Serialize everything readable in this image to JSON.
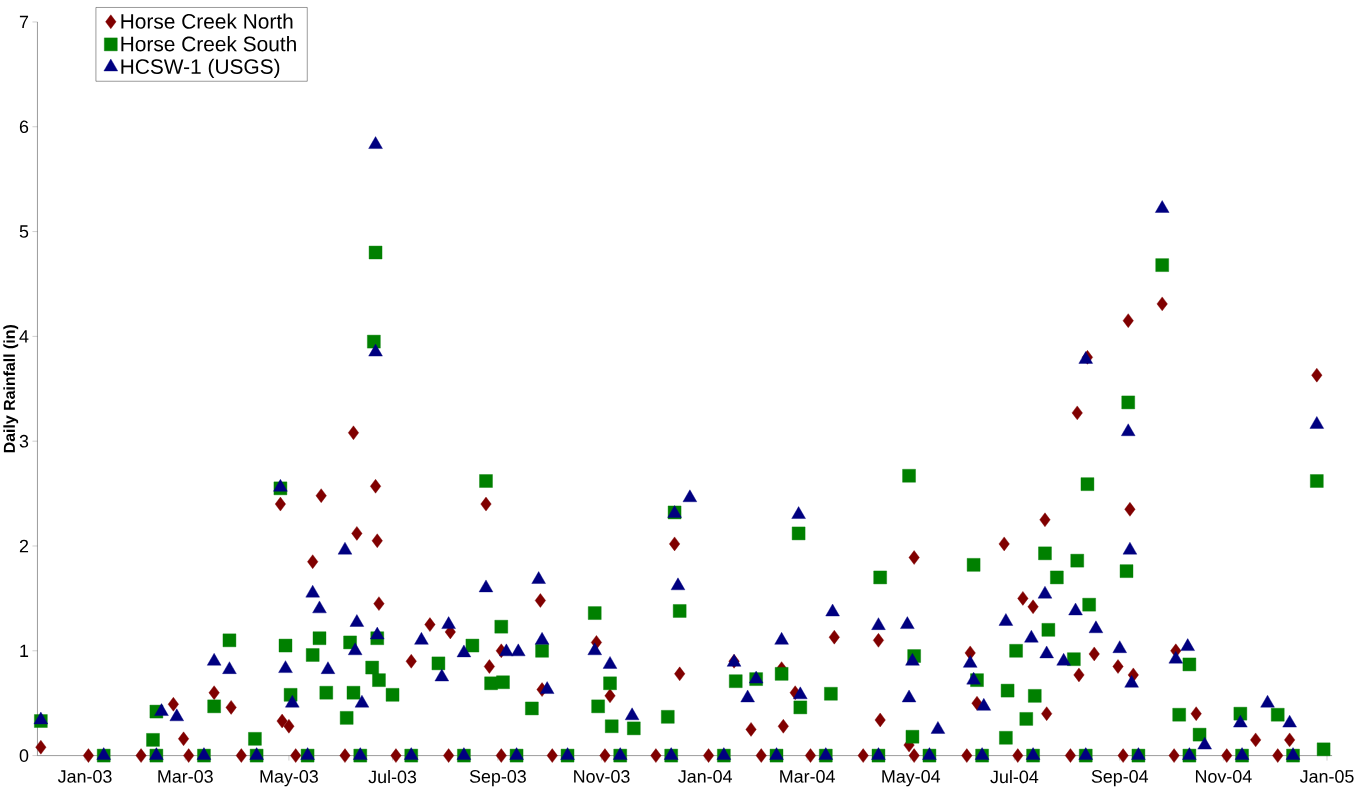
{
  "chart_data": {
    "type": "scatter",
    "ylabel": "Daily Rainfall (in)",
    "xlim": [
      "2002-12-04",
      "2005-01-04"
    ],
    "ylim": [
      0,
      7
    ],
    "yticks": [
      0,
      1,
      2,
      3,
      4,
      5,
      6,
      7
    ],
    "xticks": [
      {
        "value": "2003-01-01",
        "label": "Jan-03"
      },
      {
        "value": "2003-03-01",
        "label": "Mar-03"
      },
      {
        "value": "2003-05-01",
        "label": "May-03"
      },
      {
        "value": "2003-07-01",
        "label": "Jul-03"
      },
      {
        "value": "2003-09-01",
        "label": "Sep-03"
      },
      {
        "value": "2003-11-01",
        "label": "Nov-03"
      },
      {
        "value": "2004-01-01",
        "label": "Jan-04"
      },
      {
        "value": "2004-03-01",
        "label": "Mar-04"
      },
      {
        "value": "2004-05-01",
        "label": "May-04"
      },
      {
        "value": "2004-07-01",
        "label": "Jul-04"
      },
      {
        "value": "2004-09-01",
        "label": "Sep-04"
      },
      {
        "value": "2004-11-01",
        "label": "Nov-04"
      },
      {
        "value": "2005-01-01",
        "label": "Jan-05"
      }
    ],
    "legend": "top left",
    "series": [
      {
        "name": "Horse Creek North",
        "color": "#800000",
        "marker": "diamond",
        "x": [
          "2002-12-06",
          "2003-02-22",
          "2003-02-28",
          "2003-03-18",
          "2003-03-28",
          "2003-04-26",
          "2003-04-27",
          "2003-05-01",
          "2003-05-15",
          "2003-05-20",
          "2003-06-08",
          "2003-06-10",
          "2003-06-21",
          "2003-06-22",
          "2003-06-23",
          "2003-07-12",
          "2003-07-23",
          "2003-08-04",
          "2003-08-25",
          "2003-08-27",
          "2003-09-03",
          "2003-09-26",
          "2003-09-27",
          "2003-10-29",
          "2003-11-06",
          "2003-12-14",
          "2003-12-17",
          "2004-01-18",
          "2004-01-28",
          "2004-02-15",
          "2004-02-16",
          "2004-02-23",
          "2004-03-17",
          "2004-04-12",
          "2004-04-13",
          "2004-05-03",
          "2004-04-30",
          "2004-06-05",
          "2004-06-09",
          "2004-06-25",
          "2004-07-06",
          "2004-07-12",
          "2004-07-19",
          "2004-07-20",
          "2004-08-07",
          "2004-08-13",
          "2004-08-17",
          "2004-08-08",
          "2004-09-06",
          "2004-09-07",
          "2004-08-31",
          "2004-09-09",
          "2004-09-26",
          "2004-10-04",
          "2004-10-16",
          "2004-11-20",
          "2004-12-10",
          "2004-12-26",
          "2003-01-03",
          "2003-02-03",
          "2003-03-03",
          "2003-04-03",
          "2003-05-05",
          "2003-06-03",
          "2003-07-03",
          "2003-08-03",
          "2003-09-03",
          "2003-10-03",
          "2003-11-03",
          "2003-12-03",
          "2004-01-03",
          "2004-02-03",
          "2004-03-03",
          "2004-04-03",
          "2004-05-03",
          "2004-06-03",
          "2004-07-03",
          "2004-08-03",
          "2004-09-03",
          "2004-10-03",
          "2004-11-03",
          "2004-12-03"
        ],
        "values": [
          0.08,
          0.49,
          0.16,
          0.6,
          0.46,
          2.4,
          0.33,
          0.28,
          1.85,
          2.48,
          3.08,
          2.12,
          2.57,
          2.05,
          1.45,
          0.9,
          1.25,
          1.18,
          2.4,
          0.85,
          1.0,
          1.48,
          0.63,
          1.08,
          0.57,
          2.02,
          0.78,
          0.9,
          0.25,
          0.83,
          0.28,
          0.6,
          1.13,
          1.1,
          0.34,
          1.89,
          0.1,
          0.98,
          0.5,
          2.02,
          1.5,
          1.42,
          2.25,
          0.4,
          3.27,
          3.8,
          0.97,
          0.77,
          4.15,
          2.35,
          0.85,
          0.77,
          4.31,
          1.0,
          0.4,
          0.15,
          0.15,
          3.63,
          0,
          0,
          0,
          0,
          0,
          0,
          0,
          0,
          0,
          0,
          0,
          0,
          0,
          0,
          0,
          0,
          0,
          0,
          0,
          0,
          0,
          0,
          0,
          0
        ]
      },
      {
        "name": "Horse Creek South",
        "color": "#008000",
        "marker": "square",
        "x": [
          "2002-12-06",
          "2003-02-10",
          "2003-02-12",
          "2003-03-18",
          "2003-03-27",
          "2003-04-11",
          "2003-04-26",
          "2003-04-29",
          "2003-05-02",
          "2003-05-15",
          "2003-05-19",
          "2003-05-23",
          "2003-06-04",
          "2003-06-06",
          "2003-06-08",
          "2003-06-21",
          "2003-06-20",
          "2003-06-22",
          "2003-06-19",
          "2003-06-23",
          "2003-07-01",
          "2003-07-28",
          "2003-08-17",
          "2003-08-25",
          "2003-08-28",
          "2003-09-03",
          "2003-09-04",
          "2003-09-21",
          "2003-09-27",
          "2003-10-28",
          "2003-10-30",
          "2003-11-06",
          "2003-11-07",
          "2003-11-20",
          "2003-12-10",
          "2003-12-14",
          "2003-12-17",
          "2004-01-19",
          "2004-01-31",
          "2004-02-15",
          "2004-02-25",
          "2004-02-26",
          "2004-03-15",
          "2004-04-13",
          "2004-04-30",
          "2004-05-03",
          "2004-05-02",
          "2004-06-07",
          "2004-06-09",
          "2004-06-26",
          "2004-06-27",
          "2004-07-02",
          "2004-07-08",
          "2004-07-13",
          "2004-07-19",
          "2004-07-21",
          "2004-07-26",
          "2004-08-05",
          "2004-08-07",
          "2004-08-13",
          "2004-08-14",
          "2004-09-05",
          "2004-09-06",
          "2004-09-26",
          "2004-10-06",
          "2004-10-12",
          "2004-10-18",
          "2004-11-11",
          "2004-12-03",
          "2004-12-26",
          "2004-12-30",
          "2003-01-12",
          "2003-02-12",
          "2003-03-12",
          "2003-04-12",
          "2003-05-12",
          "2003-06-12",
          "2003-07-12",
          "2003-08-12",
          "2003-09-12",
          "2003-10-12",
          "2003-11-12",
          "2003-12-12",
          "2004-01-12",
          "2004-02-12",
          "2004-03-12",
          "2004-04-12",
          "2004-05-12",
          "2004-06-12",
          "2004-07-12",
          "2004-08-12",
          "2004-09-12",
          "2004-10-12",
          "2004-11-12",
          "2004-12-12"
        ],
        "values": [
          0.33,
          0.15,
          0.42,
          0.47,
          1.1,
          0.16,
          2.55,
          1.05,
          0.58,
          0.96,
          1.12,
          0.6,
          0.36,
          1.08,
          0.6,
          4.8,
          3.95,
          1.12,
          0.84,
          0.72,
          0.58,
          0.88,
          1.05,
          2.62,
          0.69,
          1.23,
          0.7,
          0.45,
          1.0,
          1.36,
          0.47,
          0.69,
          0.28,
          0.26,
          0.37,
          2.32,
          1.38,
          0.71,
          0.73,
          0.78,
          2.12,
          0.46,
          0.59,
          1.7,
          2.67,
          0.95,
          0.18,
          1.82,
          0.72,
          0.17,
          0.62,
          1.0,
          0.35,
          0.57,
          1.93,
          1.2,
          1.7,
          0.92,
          1.86,
          2.59,
          1.44,
          1.76,
          3.37,
          4.68,
          0.39,
          0.87,
          0.2,
          0.4,
          0.39,
          2.62,
          0.06,
          0,
          0,
          0,
          0,
          0,
          0,
          0,
          0,
          0,
          0,
          0,
          0,
          0,
          0,
          0,
          0,
          0,
          0,
          0,
          0,
          0,
          0,
          0,
          0
        ]
      },
      {
        "name": "HCSW-1 (USGS)",
        "color": "#000080",
        "marker": "triangle",
        "x": [
          "2002-12-06",
          "2003-02-15",
          "2003-02-24",
          "2003-03-18",
          "2003-03-27",
          "2003-04-26",
          "2003-04-29",
          "2003-05-03",
          "2003-05-15",
          "2003-05-19",
          "2003-05-24",
          "2003-06-03",
          "2003-06-09",
          "2003-06-10",
          "2003-06-13",
          "2003-06-21",
          "2003-06-21",
          "2003-06-22",
          "2003-07-18",
          "2003-07-30",
          "2003-08-03",
          "2003-08-12",
          "2003-08-25",
          "2003-09-06",
          "2003-09-13",
          "2003-09-25",
          "2003-09-27",
          "2003-09-30",
          "2003-10-28",
          "2003-11-06",
          "2003-11-19",
          "2003-12-14",
          "2003-12-16",
          "2003-12-23",
          "2004-01-18",
          "2004-01-26",
          "2004-01-31",
          "2004-02-15",
          "2004-02-25",
          "2004-02-26",
          "2004-03-16",
          "2004-04-12",
          "2004-04-29",
          "2004-04-30",
          "2004-05-02",
          "2004-05-17",
          "2004-06-05",
          "2004-06-07",
          "2004-06-13",
          "2004-06-26",
          "2004-07-11",
          "2004-07-19",
          "2004-07-20",
          "2004-07-30",
          "2004-08-06",
          "2004-08-12",
          "2004-08-18",
          "2004-09-01",
          "2004-09-06",
          "2004-09-07",
          "2004-09-08",
          "2004-09-26",
          "2004-10-04",
          "2004-10-11",
          "2004-10-21",
          "2004-11-11",
          "2004-11-27",
          "2004-12-10",
          "2004-12-26",
          "2003-01-12",
          "2003-02-12",
          "2003-03-12",
          "2003-04-12",
          "2003-05-12",
          "2003-06-12",
          "2003-07-12",
          "2003-08-12",
          "2003-09-12",
          "2003-10-12",
          "2003-11-12",
          "2003-12-12",
          "2004-01-12",
          "2004-02-12",
          "2004-03-12",
          "2004-04-12",
          "2004-05-12",
          "2004-06-12",
          "2004-07-12",
          "2004-08-12",
          "2004-09-12",
          "2004-10-12",
          "2004-11-12",
          "2004-12-12"
        ],
        "values": [
          0.34,
          0.42,
          0.37,
          0.9,
          0.82,
          2.56,
          0.83,
          0.5,
          1.55,
          1.4,
          0.82,
          1.96,
          1.0,
          1.27,
          0.5,
          5.83,
          3.85,
          1.15,
          1.1,
          0.75,
          1.25,
          0.98,
          1.6,
          0.99,
          0.99,
          1.68,
          1.1,
          0.63,
          1.0,
          0.87,
          0.38,
          2.31,
          1.62,
          2.46,
          0.89,
          0.55,
          0.73,
          1.1,
          2.3,
          0.58,
          1.37,
          1.24,
          1.25,
          0.55,
          0.9,
          0.25,
          0.88,
          0.72,
          0.47,
          1.28,
          1.12,
          1.54,
          0.97,
          0.9,
          1.38,
          3.78,
          1.21,
          1.02,
          3.09,
          1.96,
          0.69,
          5.22,
          0.92,
          1.04,
          0.1,
          0.31,
          0.5,
          0.31,
          3.16,
          0,
          0,
          0,
          0,
          0,
          0,
          0,
          0,
          0,
          0,
          0,
          0,
          0,
          0,
          0,
          0,
          0,
          0,
          0,
          0,
          0,
          0,
          0,
          0
        ]
      }
    ]
  }
}
